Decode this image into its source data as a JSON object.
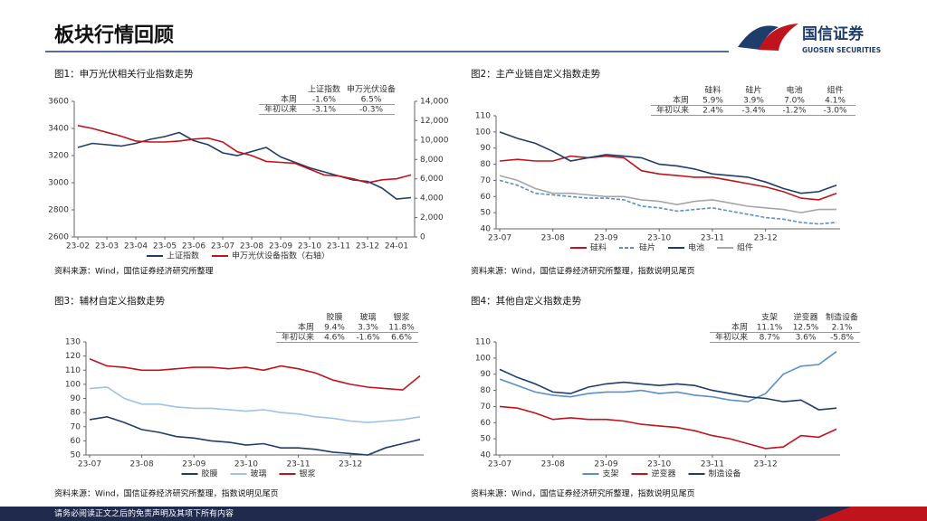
{
  "header": {
    "title": "板块行情回顾",
    "logo_cn": "国信证券",
    "logo_en": "GUOSEN SECURITIES"
  },
  "footer": "请务必阅读正文之后的免责声明及其项下所有内容",
  "chart_data": [
    {
      "type": "line",
      "title": "图1：申万光伏相关行业指数走势",
      "categories": [
        "23-02",
        null,
        "23-03",
        null,
        "23-04",
        null,
        "23-05",
        null,
        "23-06",
        null,
        "23-07",
        null,
        "23-08",
        null,
        "23-09",
        null,
        "23-10",
        null,
        "23-11",
        null,
        "23-12",
        null,
        "24-01",
        null
      ],
      "series": [
        {
          "name": "上证指数",
          "color": "#1f3d6b",
          "values": [
            3260,
            3290,
            3280,
            3270,
            3290,
            3320,
            3340,
            3370,
            3310,
            3280,
            3220,
            3200,
            3230,
            3260,
            3190,
            3150,
            3110,
            3080,
            3050,
            3020,
            3010,
            2960,
            2880,
            2890
          ]
        },
        {
          "name": "申万光伏设备指数（右轴）",
          "color": "#c0141c",
          "axis": "y2",
          "values": [
            11500,
            11200,
            10800,
            10400,
            9900,
            9800,
            9800,
            9900,
            10100,
            10200,
            9800,
            8800,
            8400,
            7800,
            7700,
            7600,
            7000,
            6400,
            6300,
            6000,
            5600,
            5900,
            6000,
            6400
          ]
        }
      ],
      "ylim": [
        2600,
        3600
      ],
      "yticks": [
        2600,
        2800,
        3000,
        3200,
        3400,
        3600
      ],
      "y2lim": [
        0,
        14000
      ],
      "y2ticks": [
        0,
        {
          "value": 2000,
          "label": "2,000"
        },
        {
          "value": 4000,
          "label": "4,000"
        },
        {
          "value": 6000,
          "label": "6,000"
        },
        {
          "value": 8000,
          "label": "8,000"
        },
        {
          "value": 10000,
          "label": "10,000"
        },
        {
          "value": 12000,
          "label": "12,000"
        },
        {
          "value": 14000,
          "label": "14,000"
        }
      ],
      "grid": false,
      "table": {
        "columns": [
          "上证指数",
          "申万光伏设备"
        ],
        "rows": [
          {
            "label": "本周",
            "values": [
              "-1.6%",
              "6.5%"
            ]
          },
          {
            "label": "年初以来",
            "values": [
              "-3.1%",
              "-0.3%"
            ]
          }
        ]
      },
      "source": "资料来源：Wind，国信证券经济研究所整理"
    },
    {
      "type": "line",
      "title": "图2：主产业链自定义指数走势",
      "categories": [
        "23-07",
        null,
        null,
        "23-08",
        null,
        null,
        "23-09",
        null,
        null,
        "23-10",
        null,
        null,
        "23-11",
        null,
        null,
        "23-12",
        null,
        null,
        null,
        null
      ],
      "series": [
        {
          "name": "硅料",
          "color": "#c0141c",
          "values": [
            82,
            83,
            82,
            82,
            85,
            84,
            85,
            84,
            76,
            74,
            73,
            72,
            72,
            70,
            68,
            66,
            63,
            59,
            58,
            62
          ]
        },
        {
          "name": "硅片",
          "color": "#5b8fc7",
          "dash": true,
          "values": [
            70,
            67,
            62,
            61,
            60,
            59,
            59,
            58,
            54,
            53,
            51,
            52,
            53,
            51,
            49,
            47,
            46,
            44,
            43,
            44
          ]
        },
        {
          "name": "电池",
          "color": "#1f3d6b",
          "values": [
            100,
            96,
            93,
            88,
            82,
            84,
            86,
            85,
            84,
            80,
            79,
            77,
            74,
            73,
            72,
            69,
            65,
            62,
            63,
            67
          ]
        },
        {
          "name": "组件",
          "color": "#a6a6a6",
          "values": [
            73,
            70,
            65,
            62,
            62,
            61,
            60,
            60,
            58,
            57,
            55,
            57,
            58,
            56,
            54,
            53,
            52,
            50,
            52,
            52
          ]
        }
      ],
      "ylim": [
        40,
        110
      ],
      "yticks": [
        40,
        50,
        60,
        70,
        80,
        90,
        100,
        110
      ],
      "grid": false,
      "table": {
        "columns": [
          "硅料",
          "硅片",
          "电池",
          "组件"
        ],
        "rows": [
          {
            "label": "本周",
            "values": [
              "5.9%",
              "3.9%",
              "7.0%",
              "4.1%"
            ]
          },
          {
            "label": "年初以来",
            "values": [
              "2.4%",
              "-3.4%",
              "-1.2%",
              "-3.0%"
            ]
          }
        ]
      },
      "source": "资料来源：Wind，国信证券经济研究所整理，指数说明见尾页"
    },
    {
      "type": "line",
      "title": "图3：辅材自定义指数走势",
      "categories": [
        "23-07",
        null,
        null,
        "23-08",
        null,
        null,
        "23-09",
        null,
        null,
        "23-10",
        null,
        null,
        "23-11",
        null,
        null,
        "23-12",
        null,
        null,
        null,
        null
      ],
      "series": [
        {
          "name": "胶膜",
          "color": "#1f3d6b",
          "values": [
            75,
            77,
            73,
            68,
            66,
            63,
            62,
            60,
            59,
            57,
            58,
            55,
            55,
            54,
            52,
            51,
            50,
            55,
            58,
            61
          ]
        },
        {
          "name": "玻璃",
          "color": "#9dc3e6",
          "values": [
            97,
            98,
            90,
            86,
            86,
            84,
            83,
            83,
            82,
            81,
            82,
            80,
            79,
            77,
            76,
            74,
            73,
            74,
            75,
            77
          ]
        },
        {
          "name": "银浆",
          "color": "#c0141c",
          "values": [
            118,
            113,
            112,
            110,
            110,
            111,
            112,
            112,
            111,
            112,
            110,
            113,
            111,
            108,
            103,
            100,
            98,
            97,
            96,
            106
          ]
        }
      ],
      "ylim": [
        50,
        130
      ],
      "yticks": [
        50,
        60,
        70,
        80,
        90,
        100,
        110,
        120,
        130
      ],
      "grid": false,
      "table": {
        "columns": [
          "胶膜",
          "玻璃",
          "银浆"
        ],
        "rows": [
          {
            "label": "本周",
            "values": [
              "9.4%",
              "3.3%",
              "11.8%"
            ]
          },
          {
            "label": "年初以来",
            "values": [
              "4.6%",
              "-1.6%",
              "6.6%"
            ]
          }
        ]
      },
      "source": "资料来源：Wind，国信证券经济研究所整理，指数说明见尾页"
    },
    {
      "type": "line",
      "title": "图4：其他自定义指数走势",
      "categories": [
        "23-07",
        null,
        null,
        "23-08",
        null,
        null,
        "23-09",
        null,
        null,
        "23-10",
        null,
        null,
        "23-11",
        null,
        null,
        "23-12",
        null,
        null,
        null,
        null
      ],
      "series": [
        {
          "name": "支架",
          "color": "#5b8fc7",
          "values": [
            87,
            83,
            79,
            77,
            76,
            78,
            79,
            79,
            80,
            78,
            79,
            77,
            76,
            74,
            73,
            78,
            90,
            95,
            96,
            104
          ]
        },
        {
          "name": "逆变器",
          "color": "#c0141c",
          "values": [
            70,
            69,
            66,
            62,
            63,
            62,
            62,
            61,
            59,
            58,
            57,
            55,
            52,
            50,
            47,
            44,
            45,
            52,
            51,
            56
          ]
        },
        {
          "name": "制造设备",
          "color": "#1f3d6b",
          "values": [
            93,
            88,
            84,
            79,
            78,
            82,
            84,
            85,
            84,
            83,
            84,
            83,
            80,
            78,
            76,
            75,
            73,
            74,
            68,
            69
          ]
        }
      ],
      "ylim": [
        40,
        110
      ],
      "yticks": [
        40,
        50,
        60,
        70,
        80,
        90,
        100,
        110
      ],
      "grid": false,
      "table": {
        "columns": [
          "支架",
          "逆变器",
          "制造设备"
        ],
        "rows": [
          {
            "label": "本周",
            "values": [
              "11.1%",
              "12.5%",
              "2.1%"
            ]
          },
          {
            "label": "年初以来",
            "values": [
              "8.7%",
              "3.6%",
              "-5.8%"
            ]
          }
        ]
      },
      "source": "资料来源：Wind，国信证券经济研究所整理，指数说明见尾页"
    }
  ]
}
